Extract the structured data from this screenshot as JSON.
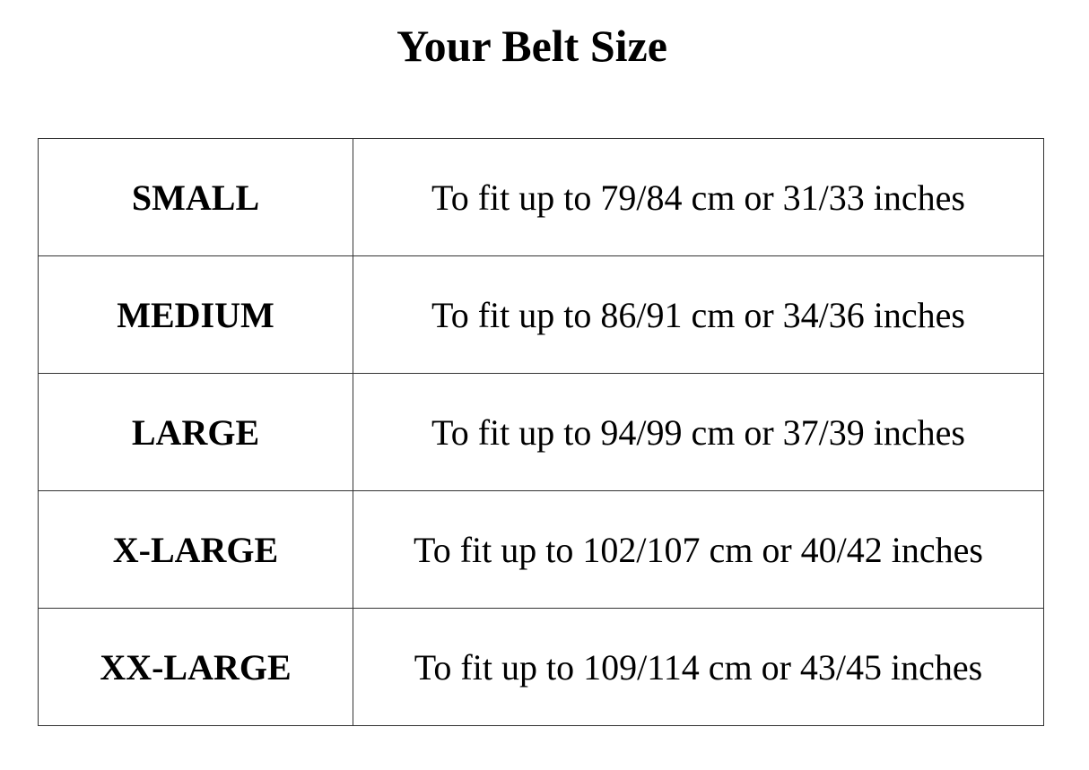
{
  "title": "Your Belt Size",
  "rows": [
    {
      "size": "SMALL",
      "fit": "To fit up to 79/84 cm or 31/33 inches"
    },
    {
      "size": "MEDIUM",
      "fit": "To fit up to 86/91 cm or 34/36 inches"
    },
    {
      "size": "LARGE",
      "fit": "To fit up to 94/99 cm or 37/39 inches"
    },
    {
      "size": "X-LARGE",
      "fit": "To fit up to 102/107 cm or 40/42 inches"
    },
    {
      "size": "XX-LARGE",
      "fit": "To fit up to 109/114 cm or 43/45 inches"
    }
  ]
}
